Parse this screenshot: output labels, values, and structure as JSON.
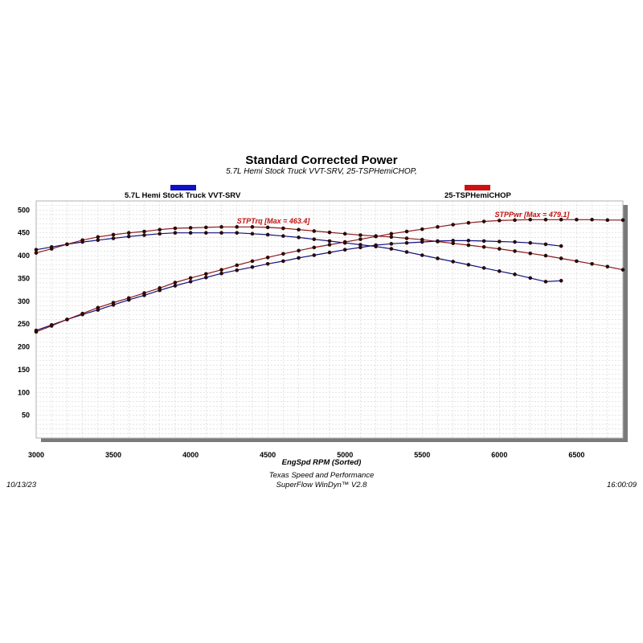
{
  "chart_data": {
    "type": "line",
    "title": "Standard Corrected Power",
    "subtitle": "5.7L Hemi Stock Truck VVT-SRV, 25-TSPHemiCHOP,",
    "xlabel": "EngSpd  RPM   (Sorted)",
    "ylabel": "",
    "xlim": [
      3000,
      6800
    ],
    "ylim": [
      0,
      520
    ],
    "x_ticks": [
      3000,
      3500,
      4000,
      4500,
      5000,
      5500,
      6000,
      6500
    ],
    "y_ticks": [
      50,
      100,
      150,
      200,
      250,
      300,
      350,
      400,
      450,
      500
    ],
    "grid": true,
    "legend": [
      {
        "name": "5.7L Hemi Stock Truck VVT-SRV",
        "color": "#1010c8",
        "position": "top-left"
      },
      {
        "name": "25-TSPHemiCHOP",
        "color": "#d01010",
        "position": "top-right"
      }
    ],
    "annotations": [
      {
        "text": "STPTrq [Max = 463.4]",
        "x": 4300,
        "y": 471,
        "color": "#c01010"
      },
      {
        "text": "STPPwr [Max = 479.1]",
        "x": 5970,
        "y": 485,
        "color": "#c01010"
      }
    ],
    "series": [
      {
        "name": "5.7L Hemi Stock Truck VVT-SRV Torque",
        "color": "#101080",
        "x": [
          3000,
          3100,
          3200,
          3300,
          3400,
          3500,
          3600,
          3700,
          3800,
          3900,
          4000,
          4100,
          4200,
          4300,
          4400,
          4500,
          4600,
          4700,
          4800,
          4900,
          5000,
          5100,
          5200,
          5300,
          5400,
          5500,
          5600,
          5700,
          5800,
          5900,
          6000,
          6100,
          6200,
          6300,
          6400
        ],
        "y": [
          413,
          419,
          425,
          430,
          434,
          438,
          442,
          445,
          448,
          450,
          450,
          450,
          450,
          450,
          448,
          446,
          443,
          440,
          436,
          432,
          428,
          424,
          420,
          415,
          408,
          401,
          394,
          387,
          380,
          373,
          366,
          359,
          351,
          343,
          345
        ]
      },
      {
        "name": "25-TSPHemiCHOP Torque",
        "color": "#8b1a1a",
        "x": [
          3000,
          3100,
          3200,
          3300,
          3400,
          3500,
          3600,
          3700,
          3800,
          3900,
          4000,
          4100,
          4200,
          4300,
          4400,
          4500,
          4600,
          4700,
          4800,
          4900,
          5000,
          5100,
          5200,
          5300,
          5400,
          5500,
          5600,
          5700,
          5800,
          5900,
          6000,
          6100,
          6200,
          6300,
          6400,
          6500,
          6600,
          6700,
          6800
        ],
        "y": [
          406,
          415,
          425,
          434,
          441,
          446,
          450,
          453,
          457,
          460,
          461,
          462,
          463,
          463,
          463,
          462,
          460,
          457,
          454,
          451,
          448,
          445,
          443,
          441,
          438,
          435,
          431,
          427,
          423,
          419,
          415,
          410,
          405,
          400,
          394,
          388,
          382,
          376,
          369
        ]
      },
      {
        "name": "5.7L Hemi Stock Truck VVT-SRV Power",
        "color": "#101080",
        "x": [
          3000,
          3100,
          3200,
          3300,
          3400,
          3500,
          3600,
          3700,
          3800,
          3900,
          4000,
          4100,
          4200,
          4300,
          4400,
          4500,
          4600,
          4700,
          4800,
          4900,
          5000,
          5100,
          5200,
          5300,
          5400,
          5500,
          5600,
          5700,
          5800,
          5900,
          6000,
          6100,
          6200,
          6300,
          6400
        ],
        "y": [
          236,
          248,
          260,
          271,
          281,
          292,
          303,
          313,
          324,
          334,
          343,
          352,
          361,
          368,
          375,
          382,
          388,
          395,
          401,
          407,
          413,
          418,
          423,
          426,
          428,
          430,
          432,
          433,
          433,
          432,
          431,
          430,
          428,
          425,
          421
        ]
      },
      {
        "name": "25-TSPHemiCHOP Power",
        "color": "#8b1a1a",
        "x": [
          3000,
          3100,
          3200,
          3300,
          3400,
          3500,
          3600,
          3700,
          3800,
          3900,
          4000,
          4100,
          4200,
          4300,
          4400,
          4500,
          4600,
          4700,
          4800,
          4900,
          5000,
          5100,
          5200,
          5300,
          5400,
          5500,
          5600,
          5700,
          5800,
          5900,
          6000,
          6100,
          6200,
          6300,
          6400,
          6500,
          6600,
          6700,
          6800
        ],
        "y": [
          233,
          246,
          260,
          273,
          286,
          297,
          307,
          318,
          329,
          341,
          351,
          360,
          369,
          379,
          388,
          396,
          404,
          411,
          418,
          424,
          430,
          436,
          442,
          448,
          453,
          458,
          463,
          468,
          472,
          475,
          477,
          478,
          479,
          479,
          479,
          479,
          479,
          478,
          478
        ]
      }
    ]
  },
  "footer": {
    "date": "10/13/23",
    "time": "16:00:09",
    "company": "Texas Speed and Performance",
    "software": "SuperFlow WinDyn™  V2.8"
  }
}
